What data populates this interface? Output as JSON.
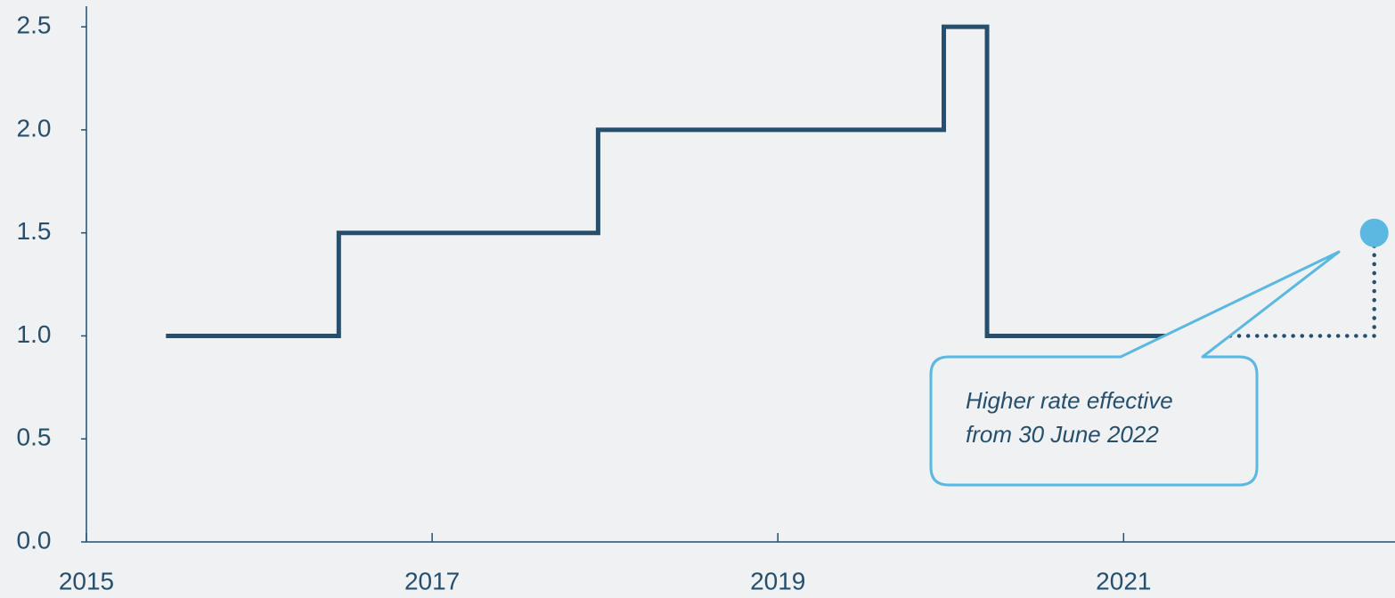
{
  "chart_data": {
    "type": "step",
    "series": [
      {
        "color": "#264f6d",
        "style": "solid",
        "x": [
          2015.46,
          2016.46,
          2017.96,
          2019.96,
          2020.21,
          2021.46
        ],
        "values": [
          1,
          1.5,
          2,
          2.5,
          1,
          1
        ]
      },
      {
        "color": "#264f6d",
        "style": "dotted",
        "x": [
          2021.46,
          2022.45
        ],
        "values": [
          1,
          1.5
        ]
      },
      {
        "color": "#5bb8e0",
        "style": "marker",
        "x": [
          2022.45
        ],
        "values": [
          1.5
        ]
      }
    ],
    "xlim": [
      2015,
      2022.57
    ],
    "xticks": [
      2015,
      2017,
      2019,
      2021
    ],
    "ylim": [
      0,
      2.6
    ],
    "yticks": [
      {
        "value": 0,
        "label": "0.0"
      },
      0.5,
      {
        "value": 1,
        "label": "1.0"
      },
      1.5,
      {
        "value": 2,
        "label": "2.0"
      },
      2.5
    ],
    "annotation": {
      "lines": [
        "Higher rate effective",
        "from 30 June 2022"
      ],
      "color": "#5bb8e0"
    }
  }
}
